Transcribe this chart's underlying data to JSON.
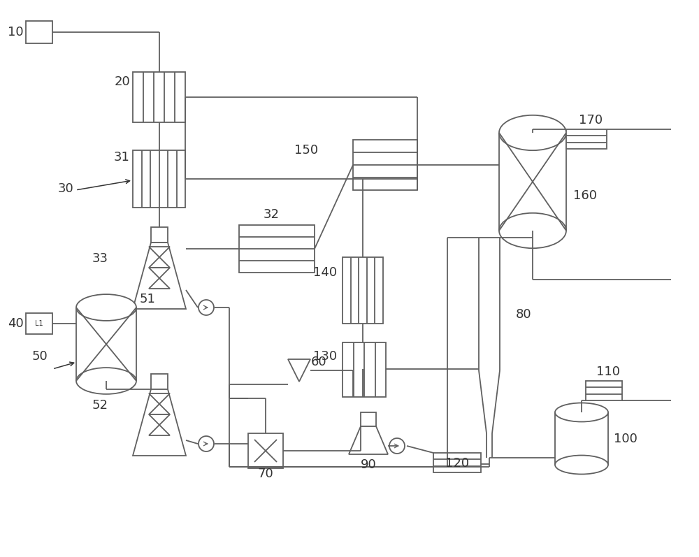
{
  "bg_color": "#ffffff",
  "lc": "#606060",
  "lw": 1.3,
  "tc": "#333333",
  "fs": 13,
  "figw": 10.0,
  "figh": 7.97,
  "dpi": 100
}
